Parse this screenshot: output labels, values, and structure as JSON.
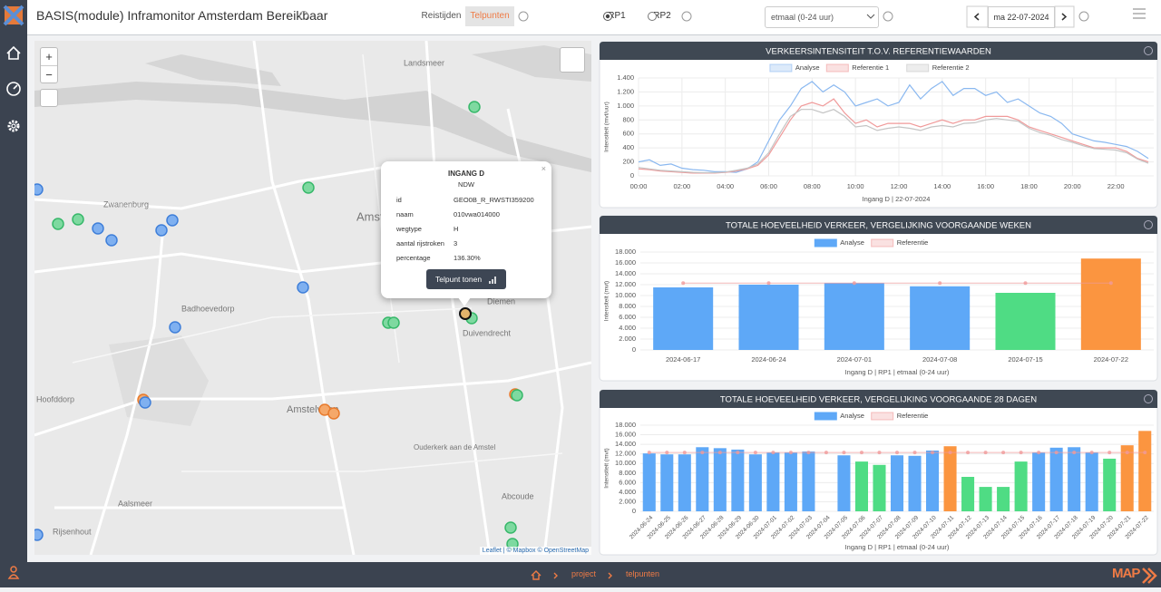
{
  "header": {
    "title": "BASIS(module) Inframonitor Amsterdam Bereikbaar",
    "tabs": [
      "Reistijden",
      "Telpunten"
    ],
    "radios": [
      "RP1",
      "RP2"
    ],
    "period": "etmaal (0-24 uur)",
    "date": "ma 22-07-2024"
  },
  "map": {
    "zoom_in": "+",
    "zoom_out": "−",
    "labels": [
      "Landsmeer",
      "Zwanenburg",
      "Badhoevedorp",
      "Hoofddorp",
      "Amsterdam",
      "Diemen",
      "Duivendrecht",
      "Amstelveen",
      "Ouderkerk aan de Amstel",
      "Abcoude",
      "Aalsmeer",
      "Rijsenhout"
    ],
    "popup": {
      "title": "INGANG D",
      "subtitle": "NDW",
      "rows": [
        [
          "id",
          "GEO0B_R_RWSTI359200"
        ],
        [
          "naam",
          "010vwa014000"
        ],
        [
          "wegtype",
          "H"
        ],
        [
          "aantal rijstroken",
          "3"
        ],
        [
          "percentage",
          "136.30%"
        ]
      ],
      "button": "Telpunt tonen"
    },
    "attribution": "Leaflet | © Mapbox © OpenStreetMap"
  },
  "chart_data": [
    {
      "type": "line",
      "title": "VERKEERSINTENSITEIT T.O.V. REFERENTIEWAARDEN",
      "xlabel": "Ingang D | 22-07-2024",
      "ylabel": "Intensiteit (mvt/uur)",
      "x": [
        0,
        0.5,
        1,
        1.5,
        2,
        2.5,
        3,
        3.5,
        4,
        4.5,
        5,
        5.5,
        6,
        6.5,
        7,
        7.5,
        8,
        8.5,
        9,
        9.5,
        10,
        10.5,
        11,
        11.5,
        12,
        12.5,
        13,
        13.5,
        14,
        14.5,
        15,
        15.5,
        16,
        16.5,
        17,
        17.5,
        18,
        18.5,
        19,
        19.5,
        20,
        20.5,
        21,
        21.5,
        22,
        22.5,
        23,
        23.5
      ],
      "xlim": [
        0,
        23.75
      ],
      "xticks": [
        {
          "value": 0,
          "label": "00:00"
        },
        {
          "value": 2,
          "label": "02:00"
        },
        {
          "value": 4,
          "label": "04:00"
        },
        {
          "value": 6,
          "label": "06:00"
        },
        {
          "value": 8,
          "label": "08:00"
        },
        {
          "value": 10,
          "label": "10:00"
        },
        {
          "value": 12,
          "label": "12:00"
        },
        {
          "value": 14,
          "label": "14:00"
        },
        {
          "value": 16,
          "label": "16:00"
        },
        {
          "value": 18,
          "label": "18:00"
        },
        {
          "value": 20,
          "label": "20:00"
        },
        {
          "value": 22,
          "label": "22:00"
        }
      ],
      "ylim": [
        0,
        1400
      ],
      "yticks": [
        0,
        200,
        400,
        600,
        800,
        {
          "value": 1000,
          "label": "1.000"
        },
        {
          "value": 1200,
          "label": "1.200"
        },
        {
          "value": 1400,
          "label": "1.400"
        }
      ],
      "grid": true,
      "series": [
        {
          "name": "Analyse",
          "color": "#8ab8f0",
          "values": [
            200,
            230,
            150,
            170,
            110,
            90,
            80,
            60,
            60,
            50,
            100,
            200,
            500,
            800,
            1000,
            1250,
            1350,
            1200,
            1300,
            1200,
            1000,
            1050,
            1100,
            1000,
            1050,
            1300,
            1100,
            1250,
            1350,
            1150,
            1250,
            1250,
            1150,
            1200,
            1050,
            1100,
            1000,
            900,
            850,
            750,
            600,
            550,
            500,
            480,
            450,
            420,
            350,
            250
          ]
        },
        {
          "name": "Referentie 1",
          "color": "#f09a9a",
          "values": [
            100,
            90,
            70,
            60,
            50,
            40,
            40,
            40,
            50,
            70,
            100,
            150,
            300,
            550,
            800,
            1000,
            1050,
            1000,
            1100,
            900,
            750,
            800,
            700,
            750,
            750,
            750,
            700,
            750,
            800,
            750,
            800,
            800,
            850,
            850,
            850,
            800,
            700,
            650,
            600,
            550,
            500,
            450,
            400,
            400,
            400,
            350,
            250,
            200
          ]
        },
        {
          "name": "Referentie 2",
          "color": "#c4c4c4",
          "values": [
            120,
            100,
            80,
            70,
            60,
            50,
            45,
            45,
            55,
            80,
            110,
            170,
            330,
            600,
            850,
            950,
            950,
            900,
            950,
            850,
            700,
            720,
            650,
            680,
            700,
            680,
            650,
            700,
            720,
            700,
            750,
            760,
            800,
            820,
            800,
            780,
            680,
            620,
            580,
            520,
            480,
            430,
            390,
            380,
            370,
            330,
            240,
            180
          ]
        }
      ]
    },
    {
      "type": "bar",
      "title": "TOTALE HOEVEELHEID VERKEER, VERGELIJKING VOORGAANDE WEKEN",
      "xlabel": "Ingang D | RP1 | etmaal (0-24 uur)",
      "ylabel": "Intensiteit (mvt)",
      "categories": [
        "2024-06-17",
        "2024-06-24",
        "2024-07-01",
        "2024-07-08",
        "2024-07-15",
        "2024-07-22"
      ],
      "ylim": [
        0,
        18000
      ],
      "yticks": [
        0,
        {
          "value": 2000,
          "label": "2.000"
        },
        {
          "value": 4000,
          "label": "4.000"
        },
        {
          "value": 6000,
          "label": "6.000"
        },
        {
          "value": 8000,
          "label": "8.000"
        },
        {
          "value": 10000,
          "label": "10.000"
        },
        {
          "value": 12000,
          "label": "12.000"
        },
        {
          "value": 14000,
          "label": "14.000"
        },
        {
          "value": 16000,
          "label": "16.000"
        },
        {
          "value": 18000,
          "label": "18.000"
        }
      ],
      "grid": true,
      "series": [
        {
          "name": "Analyse",
          "color": "#5ea8f7",
          "values": [
            11500,
            12000,
            12300,
            11700,
            10500,
            16800
          ],
          "colors": [
            "#5ea8f7",
            "#5ea8f7",
            "#5ea8f7",
            "#5ea8f7",
            "#4fdc84",
            "#fb9540"
          ]
        },
        {
          "name": "Referentie",
          "color": "#f09a9a",
          "values": [
            12300,
            12300,
            12300,
            12300,
            12300,
            12300
          ]
        }
      ]
    },
    {
      "type": "bar",
      "title": "TOTALE HOEVEELHEID VERKEER, VERGELIJKING VOORGAANDE 28 DAGEN",
      "xlabel": "Ingang D | RP1 | etmaal (0-24 uur)",
      "ylabel": "Intensiteit (mvt)",
      "categories": [
        "2024-06-24",
        "2024-06-25",
        "2024-06-26",
        "2024-06-27",
        "2024-06-28",
        "2024-06-29",
        "2024-06-30",
        "2024-07-01",
        "2024-07-02",
        "2024-07-03",
        "2024-07-04",
        "2024-07-05",
        "2024-07-06",
        "2024-07-07",
        "2024-07-08",
        "2024-07-09",
        "2024-07-10",
        "2024-07-11",
        "2024-07-12",
        "2024-07-13",
        "2024-07-14",
        "2024-07-15",
        "2024-07-16",
        "2024-07-17",
        "2024-07-18",
        "2024-07-19",
        "2024-07-20",
        "2024-07-21",
        "2024-07-22"
      ],
      "ylim": [
        0,
        18000
      ],
      "yticks": [
        0,
        {
          "value": 2000,
          "label": "2.000"
        },
        {
          "value": 4000,
          "label": "4.000"
        },
        {
          "value": 6000,
          "label": "6.000"
        },
        {
          "value": 8000,
          "label": "8.000"
        },
        {
          "value": 10000,
          "label": "10.000"
        },
        {
          "value": 12000,
          "label": "12.000"
        },
        {
          "value": 14000,
          "label": "14.000"
        },
        {
          "value": 16000,
          "label": "16.000"
        },
        {
          "value": 18000,
          "label": "18.000"
        }
      ],
      "grid": true,
      "series": [
        {
          "name": "Analyse",
          "color": "#5ea8f7",
          "values": [
            12100,
            11900,
            11900,
            13400,
            13200,
            12900,
            11900,
            12300,
            12300,
            12500,
            null,
            11700,
            10400,
            9700,
            11700,
            11600,
            12700,
            13600,
            7200,
            5100,
            5100,
            10400,
            12300,
            13300,
            13400,
            12300,
            11000,
            13800,
            16800
          ],
          "colors": [
            "#5ea8f7",
            "#5ea8f7",
            "#5ea8f7",
            "#5ea8f7",
            "#5ea8f7",
            "#5ea8f7",
            "#5ea8f7",
            "#5ea8f7",
            "#5ea8f7",
            "#5ea8f7",
            "#5ea8f7",
            "#5ea8f7",
            "#4fdc84",
            "#4fdc84",
            "#5ea8f7",
            "#5ea8f7",
            "#5ea8f7",
            "#fb9540",
            "#4fdc84",
            "#4fdc84",
            "#4fdc84",
            "#4fdc84",
            "#5ea8f7",
            "#5ea8f7",
            "#5ea8f7",
            "#5ea8f7",
            "#4fdc84",
            "#fb9540",
            "#fb9540"
          ]
        },
        {
          "name": "Referentie",
          "color": "#f09a9a",
          "values": [
            12300,
            12300,
            12300,
            12300,
            12300,
            12300,
            12300,
            12300,
            12300,
            12300,
            12300,
            12300,
            12300,
            12300,
            12300,
            12300,
            12300,
            12300,
            12300,
            12300,
            12300,
            12300,
            12300,
            12300,
            12300,
            12300,
            12300,
            12300,
            12300
          ]
        }
      ]
    }
  ],
  "footer": {
    "breadcrumb": [
      "project",
      "telpunten"
    ],
    "logo": "MAP"
  }
}
